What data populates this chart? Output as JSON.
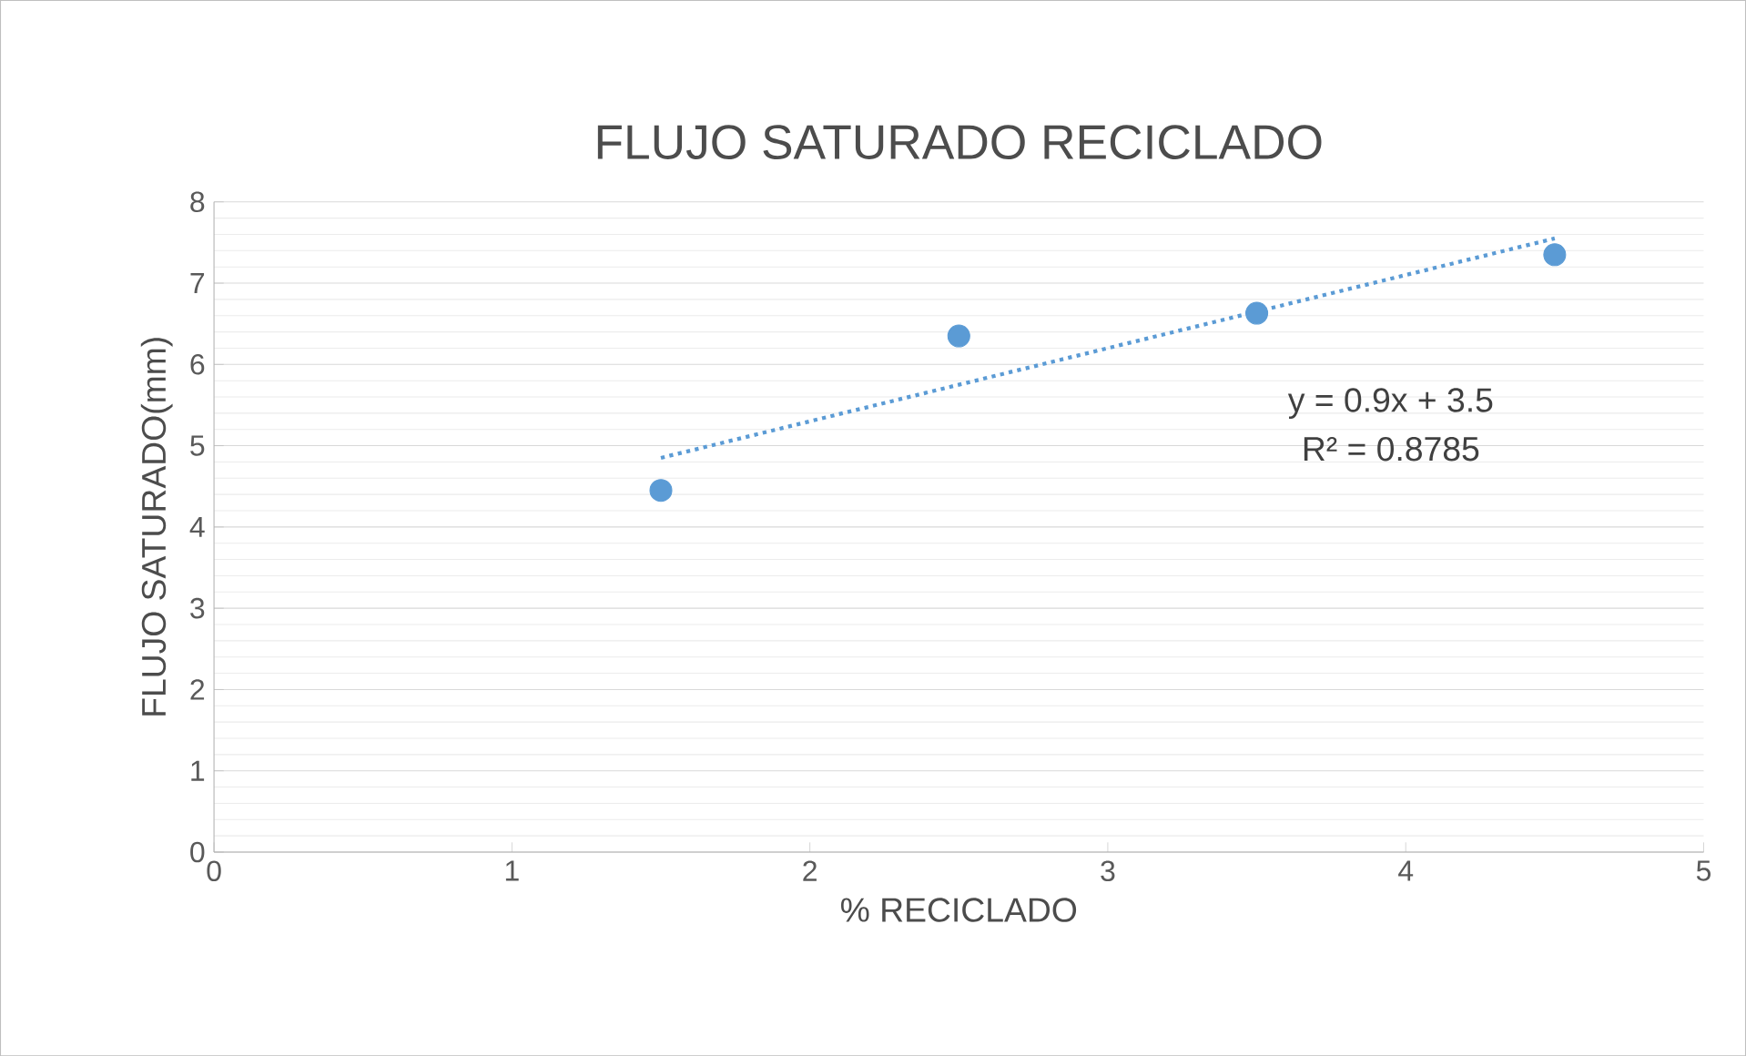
{
  "chart_data": {
    "type": "scatter",
    "title": "FLUJO SATURADO RECICLADO",
    "xlabel": "% RECICLADO",
    "ylabel": "FLUJO SATURADO(mm)",
    "xlim": [
      0,
      5
    ],
    "xticks": [
      0,
      1,
      2,
      3,
      4,
      5
    ],
    "ylim": [
      0,
      8
    ],
    "yticks": [
      0,
      1,
      2,
      3,
      4,
      5,
      6,
      7,
      8
    ],
    "grid": "y",
    "series": [
      {
        "type": "scatter",
        "color": "#5b9bd5",
        "marker": "circle",
        "x": [
          1.5,
          2.5,
          3.5,
          4.5
        ],
        "values": [
          4.45,
          6.35,
          6.63,
          7.35
        ]
      },
      {
        "type": "line",
        "color": "#5b9bd5",
        "marker": "none",
        "line_style": "dotted",
        "x": [
          1.5,
          4.5
        ],
        "values": [
          4.85,
          7.55
        ]
      }
    ],
    "annotations": [
      "y = 0.9x + 3.5",
      "R² = 0.8785"
    ]
  }
}
